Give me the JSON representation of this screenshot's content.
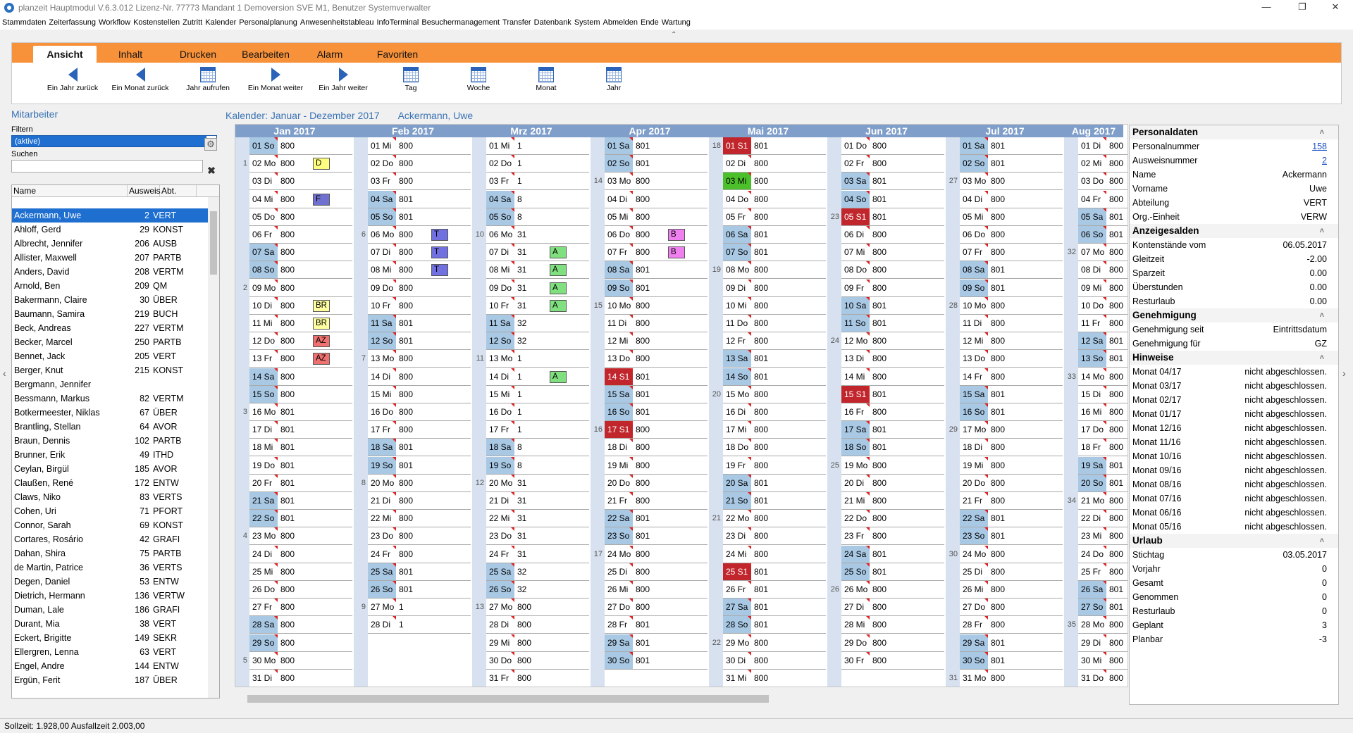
{
  "window": {
    "title": "planzeit Hauptmodul V.6.3.012  Lizenz-Nr. 77773  Mandant 1 Demoversion SVE M1, Benutzer Systemverwalter",
    "minimize": "—",
    "maximize": "❐",
    "close": "✕"
  },
  "menu": [
    "Stammdaten",
    "Zeiterfassung",
    "Workflow",
    "Kostenstellen",
    "Zutritt",
    "Kalender",
    "Personalplanung",
    "Anwesenheitstableau",
    "InfoTerminal",
    "Besuchermanagement",
    "Transfer",
    "Datenbank",
    "System",
    "Abmelden",
    "Ende",
    "Wartung"
  ],
  "ribbon": {
    "tabs": [
      "Ansicht",
      "Inhalt",
      "Drucken",
      "Bearbeiten",
      "Alarm",
      "Favoriten"
    ],
    "active_tab": "Ansicht",
    "buttons": [
      {
        "label": "Ein Jahr zurück",
        "icon": "arrow-left-icon"
      },
      {
        "label": "Ein Monat zurück",
        "icon": "arrow-left-icon"
      },
      {
        "label": "Jahr aufrufen",
        "icon": "calendar-icon"
      },
      {
        "label": "Ein Monat weiter",
        "icon": "arrow-right-icon"
      },
      {
        "label": "Ein Jahr weiter",
        "icon": "arrow-right-icon"
      },
      {
        "label": "Tag",
        "icon": "calendar-day-icon"
      },
      {
        "label": "Woche",
        "icon": "calendar-week-icon"
      },
      {
        "label": "Monat",
        "icon": "calendar-month-icon"
      },
      {
        "label": "Jahr",
        "icon": "calendar-year-icon"
      }
    ]
  },
  "left": {
    "section_title": "Mitarbeiter",
    "filter_label": "Filtern",
    "filter_value": "(aktive)",
    "search_label": "Suchen",
    "search_value": "",
    "columns": [
      "Name",
      "Ausweis",
      "Abt."
    ],
    "employees": [
      [
        "Ackermann, Uwe",
        "2",
        "VERT"
      ],
      [
        "Ahloff, Gerd",
        "29",
        "KONST"
      ],
      [
        "Albrecht, Jennifer",
        "206",
        "AUSB"
      ],
      [
        "Allister, Maxwell",
        "207",
        "PARTB"
      ],
      [
        "Anders, David",
        "208",
        "VERTM"
      ],
      [
        "Arnold, Ben",
        "209",
        "QM"
      ],
      [
        "Bakermann, Claire",
        "30",
        "ÜBER"
      ],
      [
        "Baumann, Samira",
        "219",
        "BUCH"
      ],
      [
        "Beck, Andreas",
        "227",
        "VERTM"
      ],
      [
        "Becker, Marcel",
        "250",
        "PARTB"
      ],
      [
        "Bennet, Jack",
        "205",
        "VERT"
      ],
      [
        "Berger, Knut",
        "215",
        "KONST"
      ],
      [
        "Bergmann, Jennifer",
        "",
        ""
      ],
      [
        "Bessmann, Markus",
        "82",
        "VERTM"
      ],
      [
        "Botkermeester, Niklas",
        "67",
        "ÜBER"
      ],
      [
        "Brantling, Stellan",
        "64",
        "AVOR"
      ],
      [
        "Braun, Dennis",
        "102",
        "PARTB"
      ],
      [
        "Brunner, Erik",
        "49",
        "ITHD"
      ],
      [
        "Ceylan, Birgül",
        "185",
        "AVOR"
      ],
      [
        "Claußen, René",
        "172",
        "ENTW"
      ],
      [
        "Claws, Niko",
        "83",
        "VERTS"
      ],
      [
        "Cohen, Uri",
        "71",
        "PFORT"
      ],
      [
        "Connor, Sarah",
        "69",
        "KONST"
      ],
      [
        "Cortares, Rosário",
        "42",
        "GRAFI"
      ],
      [
        "Dahan, Shira",
        "75",
        "PARTB"
      ],
      [
        "de Martin, Patrice",
        "36",
        "VERTS"
      ],
      [
        "Degen, Daniel",
        "53",
        "ENTW"
      ],
      [
        "Dietrich, Hermann",
        "136",
        "VERTW"
      ],
      [
        "Duman, Lale",
        "186",
        "GRAFI"
      ],
      [
        "Durant, Mia",
        "38",
        "VERT"
      ],
      [
        "Eckert, Brigitte",
        "149",
        "SEKR"
      ],
      [
        "Ellergren, Lenna",
        "63",
        "VERT"
      ],
      [
        "Engel, Andre",
        "144",
        "ENTW"
      ],
      [
        "Ergün, Ferit",
        "187",
        "ÜBER"
      ]
    ],
    "selected": 0
  },
  "calendar": {
    "header": "Kalender: Januar - Dezember 2017",
    "person": "Ackermann, Uwe",
    "months": [
      {
        "name": "Jan 2017",
        "start_weekday": 6,
        "days": 31,
        "start_week": 0,
        "values": [
          "800",
          "800",
          "800",
          "800",
          "800",
          "800",
          "800",
          "800",
          "800",
          "800",
          "800",
          "800",
          "800",
          "800",
          "800",
          "801",
          "801",
          "801",
          "801",
          "801",
          "801",
          "801",
          "800",
          "800",
          "800",
          "800",
          "800",
          "800",
          "800",
          "800",
          "800"
        ],
        "badges": {
          "2": [
            "D",
            "#ffff80"
          ],
          "4": [
            "F",
            "#7070d0"
          ],
          "10": [
            "BR",
            "#ffffa0"
          ],
          "11": [
            "BR",
            "#ffffa0"
          ],
          "12": [
            "AZ",
            "#f07070"
          ],
          "13": [
            "AZ",
            "#f07070"
          ]
        },
        "weeks": {
          "2": "1",
          "9": "2",
          "16": "3",
          "23": "4",
          "30": "5"
        }
      },
      {
        "name": "Feb 2017",
        "start_weekday": 2,
        "days": 28,
        "values": [
          "800",
          "800",
          "800",
          "801",
          "801",
          "800",
          "800",
          "800",
          "800",
          "800",
          "801",
          "801",
          "800",
          "800",
          "800",
          "800",
          "800",
          "801",
          "801",
          "800",
          "800",
          "800",
          "800",
          "800",
          "801",
          "801",
          "1",
          "1"
        ],
        "badges": {
          "6": [
            "T",
            "#7070e0"
          ],
          "7": [
            "T",
            "#7070e0"
          ],
          "8": [
            "T",
            "#7070e0"
          ]
        },
        "weeks": {
          "6": "6",
          "13": "7",
          "20": "8",
          "27": "9"
        }
      },
      {
        "name": "Mrz 2017",
        "start_weekday": 2,
        "days": 31,
        "values": [
          "1",
          "1",
          "1",
          "8",
          "8",
          "31",
          "31",
          "31",
          "31",
          "31",
          "32",
          "32",
          "1",
          "1",
          "1",
          "1",
          "1",
          "8",
          "8",
          "31",
          "31",
          "31",
          "31",
          "31",
          "32",
          "32",
          "800",
          "800",
          "800",
          "800",
          "800"
        ],
        "badges": {
          "7": [
            "A",
            "#80e080"
          ],
          "8": [
            "A",
            "#80e080"
          ],
          "9": [
            "A",
            "#80e080"
          ],
          "10": [
            "A",
            "#80e080"
          ],
          "14": [
            "A",
            "#80e080"
          ]
        },
        "weeks": {
          "6": "10",
          "13": "11",
          "20": "12",
          "27": "13"
        }
      },
      {
        "name": "Apr 2017",
        "start_weekday": 5,
        "days": 30,
        "values": [
          "801",
          "801",
          "800",
          "800",
          "800",
          "800",
          "800",
          "801",
          "801",
          "800",
          "800",
          "800",
          "800",
          "801",
          "801",
          "801",
          "800",
          "800",
          "800",
          "800",
          "800",
          "801",
          "801",
          "800",
          "800",
          "800",
          "800",
          "801",
          "801",
          "801"
        ],
        "badges": {
          "6": [
            "B",
            "#f080f0"
          ],
          "7": [
            "B",
            "#f080f0"
          ]
        },
        "holidays": [
          14,
          17
        ],
        "weeks": {
          "3": "14",
          "10": "15",
          "17": "16",
          "24": "17"
        }
      },
      {
        "name": "Mai 2017",
        "start_weekday": 0,
        "days": 31,
        "values": [
          "801",
          "800",
          "800",
          "800",
          "800",
          "801",
          "801",
          "800",
          "800",
          "800",
          "800",
          "800",
          "801",
          "801",
          "800",
          "800",
          "800",
          "800",
          "800",
          "801",
          "801",
          "800",
          "800",
          "800",
          "801",
          "801",
          "801",
          "801",
          "800",
          "800",
          "800"
        ],
        "holidays": [
          1,
          25
        ],
        "green": [
          3
        ],
        "weeks": {
          "1": "18",
          "8": "19",
          "15": "20",
          "22": "21",
          "29": "22"
        }
      },
      {
        "name": "Jun 2017",
        "start_weekday": 3,
        "days": 30,
        "values": [
          "800",
          "800",
          "801",
          "801",
          "801",
          "800",
          "800",
          "800",
          "800",
          "801",
          "801",
          "800",
          "800",
          "800",
          "801",
          "800",
          "801",
          "801",
          "800",
          "800",
          "800",
          "800",
          "800",
          "801",
          "801",
          "800",
          "800",
          "800",
          "800",
          "800"
        ],
        "holidays": [
          5,
          15
        ],
        "weeks": {
          "5": "23",
          "12": "24",
          "19": "25",
          "26": "26"
        }
      },
      {
        "name": "Jul 2017",
        "start_weekday": 5,
        "days": 31,
        "values": [
          "801",
          "801",
          "800",
          "800",
          "800",
          "800",
          "800",
          "801",
          "801",
          "800",
          "800",
          "800",
          "800",
          "800",
          "801",
          "801",
          "800",
          "800",
          "800",
          "800",
          "800",
          "801",
          "801",
          "800",
          "800",
          "800",
          "800",
          "800",
          "801",
          "801",
          "800"
        ],
        "weeks": {
          "3": "27",
          "10": "28",
          "17": "29",
          "24": "30",
          "31": "31"
        }
      },
      {
        "name": "Aug 2017",
        "start_weekday": 1,
        "days": 31,
        "values": [
          "800",
          "800",
          "800",
          "800",
          "801",
          "801",
          "800",
          "800",
          "800",
          "800",
          "800",
          "801",
          "801",
          "800",
          "800",
          "800",
          "800",
          "800",
          "801",
          "801",
          "800",
          "800",
          "800",
          "800",
          "800",
          "801",
          "801",
          "800",
          "800",
          "800",
          "800"
        ],
        "weeks": {
          "7": "32",
          "14": "33",
          "21": "34",
          "28": "35"
        }
      }
    ],
    "weekday_abbr": [
      "Mo",
      "Di",
      "Mi",
      "Do",
      "Fr",
      "Sa",
      "So"
    ]
  },
  "right": {
    "sections": [
      {
        "title": "Personaldaten",
        "rows": [
          [
            "Personalnummer",
            "158",
            "link"
          ],
          [
            "Ausweisnummer",
            "2",
            "link"
          ],
          [
            "Name",
            "Ackermann",
            ""
          ],
          [
            "Vorname",
            "Uwe",
            ""
          ],
          [
            "Abteilung",
            "VERT",
            ""
          ],
          [
            "Org.-Einheit",
            "VERW",
            ""
          ]
        ]
      },
      {
        "title": "Anzeigesalden",
        "rows": [
          [
            "Kontenstände vom",
            "06.05.2017",
            ""
          ],
          [
            "Gleitzeit",
            "-2.00",
            ""
          ],
          [
            "Sparzeit",
            "0.00",
            ""
          ],
          [
            "Überstunden",
            "0.00",
            ""
          ],
          [
            "Resturlaub",
            "0.00",
            ""
          ]
        ]
      },
      {
        "title": "Genehmigung",
        "rows": [
          [
            "Genehmigung seit",
            "Eintrittsdatum",
            ""
          ],
          [
            "Genehmigung für",
            "GZ",
            ""
          ]
        ]
      },
      {
        "title": "Hinweise",
        "rows": [
          [
            "Monat 04/17",
            "nicht abgeschlossen.",
            ""
          ],
          [
            "Monat 03/17",
            "nicht abgeschlossen.",
            ""
          ],
          [
            "Monat 02/17",
            "nicht abgeschlossen.",
            ""
          ],
          [
            "Monat 01/17",
            "nicht abgeschlossen.",
            ""
          ],
          [
            "Monat 12/16",
            "nicht abgeschlossen.",
            ""
          ],
          [
            "Monat 11/16",
            "nicht abgeschlossen.",
            ""
          ],
          [
            "Monat 10/16",
            "nicht abgeschlossen.",
            ""
          ],
          [
            "Monat 09/16",
            "nicht abgeschlossen.",
            ""
          ],
          [
            "Monat 08/16",
            "nicht abgeschlossen.",
            ""
          ],
          [
            "Monat 07/16",
            "nicht abgeschlossen.",
            ""
          ],
          [
            "Monat 06/16",
            "nicht abgeschlossen.",
            ""
          ],
          [
            "Monat 05/16",
            "nicht abgeschlossen.",
            ""
          ]
        ]
      },
      {
        "title": "Urlaub",
        "rows": [
          [
            "Stichtag",
            "03.05.2017",
            ""
          ],
          [
            "Vorjahr",
            "0",
            ""
          ],
          [
            "Gesamt",
            "0",
            ""
          ],
          [
            "Genommen",
            "0",
            ""
          ],
          [
            "Resturlaub",
            "0",
            ""
          ],
          [
            "Geplant",
            "3",
            ""
          ],
          [
            "Planbar",
            "-3",
            ""
          ]
        ]
      }
    ]
  },
  "status": "Sollzeit:  1.928,00   Ausfallzeit 2.003,00"
}
